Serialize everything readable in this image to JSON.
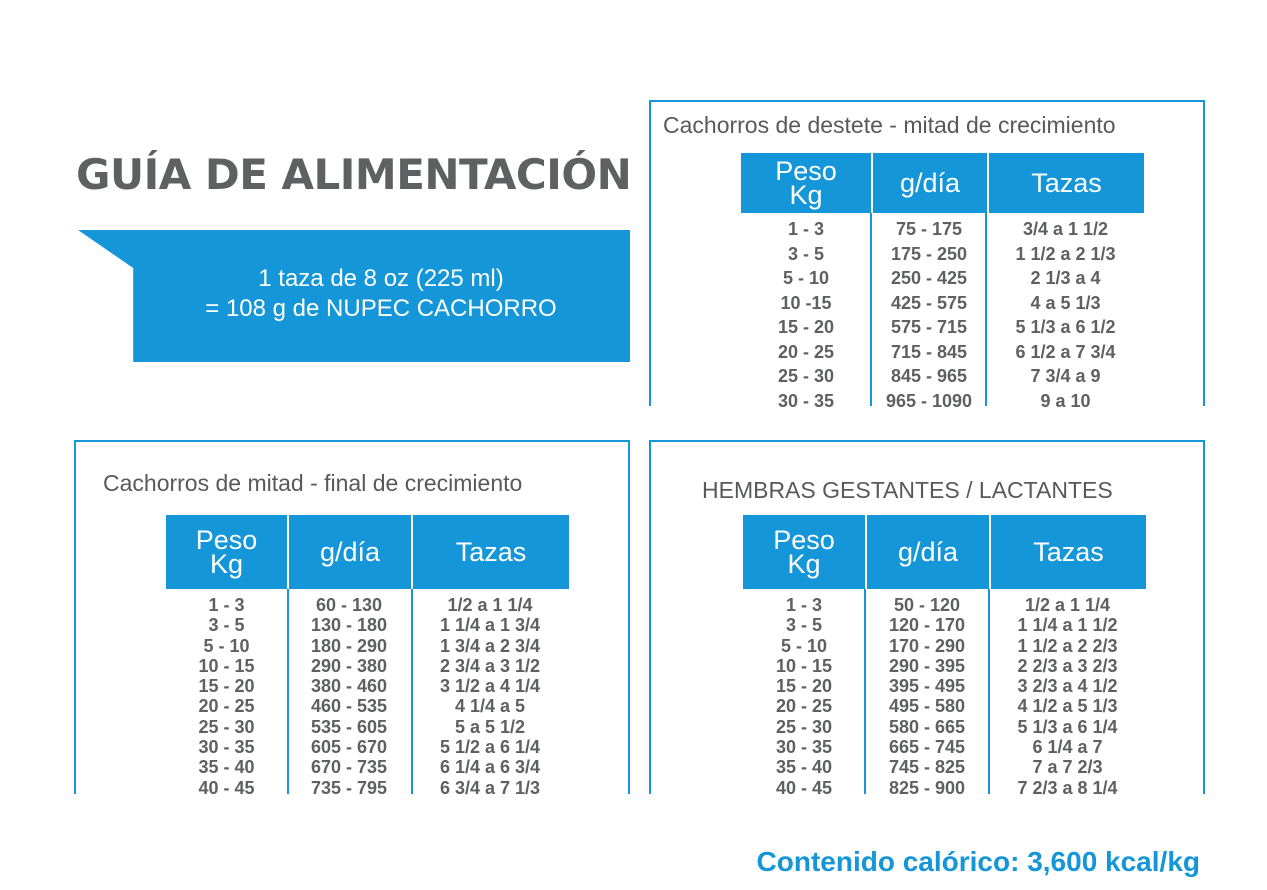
{
  "title": "GUÍA DE ALIMENTACIÓN",
  "banner": {
    "line1": "1 taza de 8 oz (225 ml)",
    "line2": "= 108 g de NUPEC CACHORRO"
  },
  "headers": {
    "peso_line1": "Peso",
    "peso_line2": "Kg",
    "gdia": "g/día",
    "tazas": "Tazas"
  },
  "tables": [
    {
      "title": "Cachorros de destete - mitad de crecimiento",
      "rows": [
        [
          "1 - 3",
          "75 - 175",
          "3/4 a 1 1/2"
        ],
        [
          "3 - 5",
          "175 - 250",
          "1 1/2 a 2 1/3"
        ],
        [
          "5 - 10",
          "250 - 425",
          "2 1/3 a 4"
        ],
        [
          "10 -15",
          "425 - 575",
          "4 a 5 1/3"
        ],
        [
          "15 - 20",
          "575 - 715",
          "5 1/3 a 6 1/2"
        ],
        [
          "20 - 25",
          "715 - 845",
          "6 1/2 a 7 3/4"
        ],
        [
          "25 - 30",
          "845 - 965",
          "7 3/4 a 9"
        ],
        [
          "30 - 35",
          "965 - 1090",
          "9 a 10"
        ]
      ]
    },
    {
      "title": "Cachorros de mitad - final de crecimiento",
      "rows": [
        [
          "1 - 3",
          "60 - 130",
          "1/2 a 1 1/4"
        ],
        [
          "3 - 5",
          "130 - 180",
          "1 1/4 a 1 3/4"
        ],
        [
          "5 - 10",
          "180 - 290",
          "1 3/4 a 2 3/4"
        ],
        [
          "10 - 15",
          "290 - 380",
          "2 3/4 a 3 1/2"
        ],
        [
          "15 - 20",
          "380 - 460",
          "3 1/2 a 4 1/4"
        ],
        [
          "20 - 25",
          "460 - 535",
          "4 1/4 a 5"
        ],
        [
          "25 - 30",
          "535 - 605",
          "5 a 5 1/2"
        ],
        [
          "30 - 35",
          "605 - 670",
          "5 1/2 a 6 1/4"
        ],
        [
          "35 - 40",
          "670 - 735",
          "6 1/4 a 6 3/4"
        ],
        [
          "40 - 45",
          "735 - 795",
          "6 3/4 a 7 1/3"
        ]
      ]
    },
    {
      "title": "HEMBRAS GESTANTES / LACTANTES",
      "rows": [
        [
          "1 - 3",
          "50 - 120",
          "1/2 a 1 1/4"
        ],
        [
          "3 - 5",
          "120 - 170",
          "1 1/4 a 1 1/2"
        ],
        [
          "5 - 10",
          "170 - 290",
          "1 1/2 a 2 2/3"
        ],
        [
          "10 - 15",
          "290 - 395",
          "2 2/3 a 3 2/3"
        ],
        [
          "15 - 20",
          "395 - 495",
          "3 2/3 a 4 1/2"
        ],
        [
          "20 - 25",
          "495 - 580",
          "4 1/2 a 5 1/3"
        ],
        [
          "25 - 30",
          "580 - 665",
          "5 1/3 a 6 1/4"
        ],
        [
          "30 - 35",
          "665 - 745",
          "6 1/4 a 7"
        ],
        [
          "35 - 40",
          "745 - 825",
          "7 a 7 2/3"
        ],
        [
          "40 - 45",
          "825 - 900",
          "7 2/3 a 8 1/4"
        ]
      ]
    }
  ],
  "footer": "Contenido calórico: 3,600 kcal/kg",
  "colors": {
    "accent": "#1496d8",
    "text": "#58595b",
    "header_text": "#ffffff"
  }
}
